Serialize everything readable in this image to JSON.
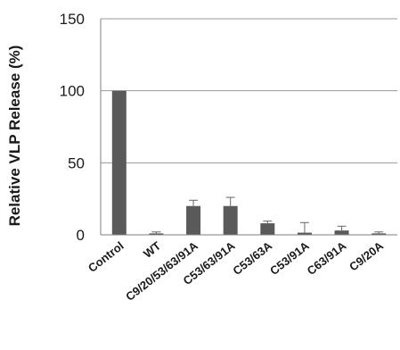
{
  "chart_data": {
    "type": "bar",
    "ylabel": "Relative VLP Release (%)",
    "xlabel": "",
    "title": "",
    "ylim": [
      0,
      150
    ],
    "yticks": [
      0,
      50,
      100,
      150
    ],
    "grid": true,
    "categories": [
      "Control",
      "WT",
      "C9/20/53/63/91A",
      "C53/63/91A",
      "C53/63A",
      "C53/91A",
      "C63/91A",
      "C9/20A"
    ],
    "values": [
      100,
      1,
      20,
      20,
      8,
      1.5,
      3,
      1
    ],
    "errors": [
      0,
      1,
      4,
      6,
      1.5,
      7,
      3,
      1
    ],
    "bar_color": "#5a5a5a"
  }
}
